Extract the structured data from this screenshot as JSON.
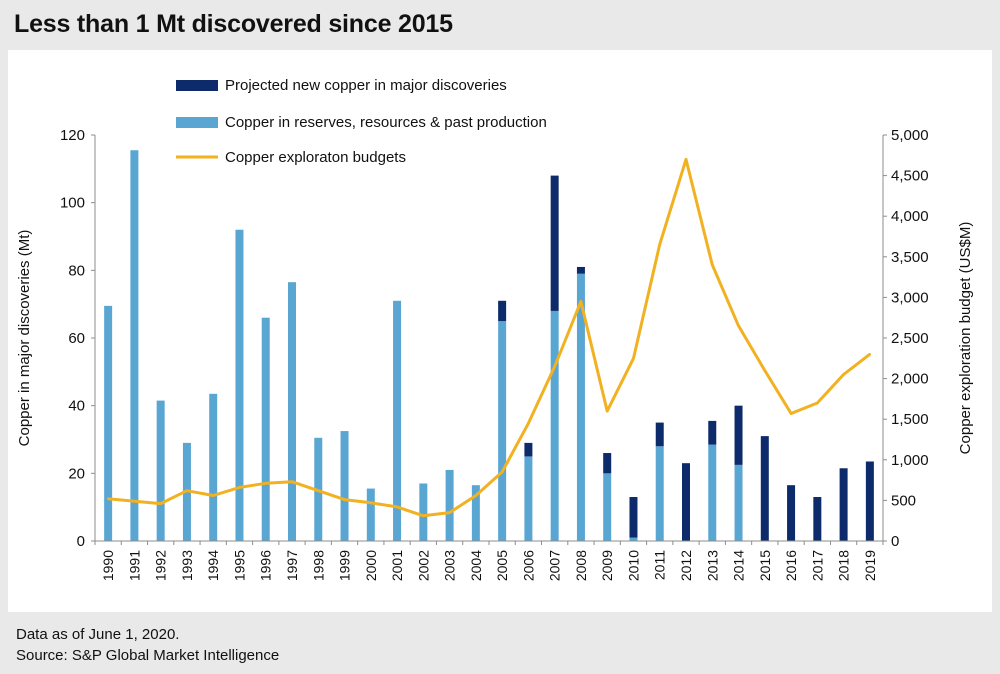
{
  "header": {
    "title": "Less than 1 Mt discovered since 2015"
  },
  "footer": {
    "note": "Data as of June 1, 2020.",
    "source": "Source: S&P Global Market Intelligence"
  },
  "chart_data": {
    "type": "bar",
    "title": "Less than 1 Mt discovered since 2015",
    "categories": [
      "1990",
      "1991",
      "1992",
      "1993",
      "1994",
      "1995",
      "1996",
      "1997",
      "1998",
      "1999",
      "2000",
      "2001",
      "2002",
      "2003",
      "2004",
      "2005",
      "2006",
      "2007",
      "2008",
      "2009",
      "2010",
      "2011",
      "2012",
      "2013",
      "2014",
      "2015",
      "2016",
      "2017",
      "2018",
      "2019"
    ],
    "ylabel": "Copper in major discoveries (Mt)",
    "y2label": "Copper exploration budget (US$M)",
    "ylim": [
      0,
      120
    ],
    "y2lim": [
      0,
      5000
    ],
    "yticks": [
      "0",
      "20",
      "40",
      "60",
      "80",
      "100",
      "120"
    ],
    "y2ticks": [
      "0",
      "500",
      "1,000",
      "1,500",
      "2,000",
      "2,500",
      "3,000",
      "3,500",
      "4,000",
      "4,500",
      "5,000"
    ],
    "grid": false,
    "legend_position": "top",
    "stacked": true,
    "series": [
      {
        "name": "Copper in reserves, resources & past production",
        "type": "bar",
        "axis": "left",
        "color": "#5aa6d3",
        "values": [
          69.5,
          115.5,
          41.5,
          29,
          43.5,
          92,
          66,
          76.5,
          30.5,
          32.5,
          15.5,
          71,
          17,
          21,
          16.5,
          65,
          25,
          68,
          79,
          20,
          1,
          28,
          0,
          28.5,
          22.5,
          0,
          0,
          0,
          0,
          0
        ]
      },
      {
        "name": "Projected new copper in major discoveries",
        "type": "bar",
        "axis": "left",
        "color": "#0d2b6b",
        "values": [
          0,
          0,
          0,
          0,
          0,
          0,
          0,
          0,
          0,
          0,
          0,
          0,
          0,
          0,
          0,
          6,
          4,
          40,
          2,
          6,
          12,
          7,
          23,
          7,
          17.5,
          31,
          16.5,
          13,
          21.5,
          23.5
        ]
      },
      {
        "name": "Copper exploraton budgets",
        "type": "line",
        "axis": "right",
        "color": "#f2b120",
        "values": [
          520,
          490,
          460,
          620,
          560,
          660,
          710,
          730,
          620,
          510,
          470,
          420,
          310,
          350,
          560,
          850,
          1450,
          2150,
          2950,
          1600,
          2250,
          3650,
          4700,
          3400,
          2650,
          2100,
          1570,
          1700,
          2050,
          2300
        ]
      }
    ]
  }
}
